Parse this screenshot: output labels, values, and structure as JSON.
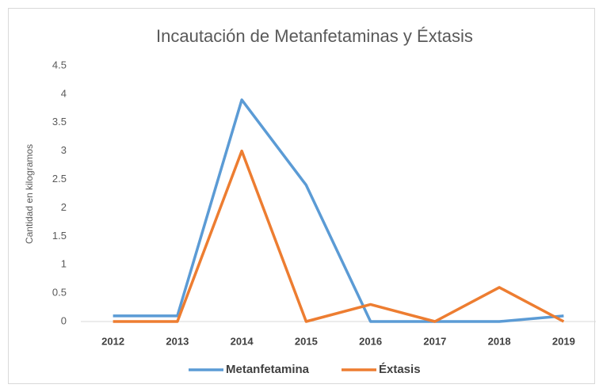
{
  "chart_data": {
    "type": "line",
    "title": "Incautación de Metanfetaminas y Éxtasis",
    "y_label": "Cantidad en kilogramos",
    "categories": [
      "2012",
      "2013",
      "2014",
      "2015",
      "2016",
      "2017",
      "2018",
      "2019"
    ],
    "series": [
      {
        "name": "Metanfetamina",
        "color": "#5b9bd5",
        "values": [
          0.1,
          0.1,
          3.9,
          2.4,
          0,
          0,
          0,
          0.1
        ]
      },
      {
        "name": "Éxtasis",
        "color": "#ed7d31",
        "values": [
          0,
          0,
          3,
          0,
          0.3,
          0,
          0.6,
          0
        ]
      }
    ],
    "ylim": [
      0,
      4.5
    ],
    "yticks": [
      0,
      0.5,
      1,
      1.5,
      2,
      2.5,
      3,
      3.5,
      4,
      4.5
    ],
    "grid": false,
    "legend": "bottom"
  }
}
